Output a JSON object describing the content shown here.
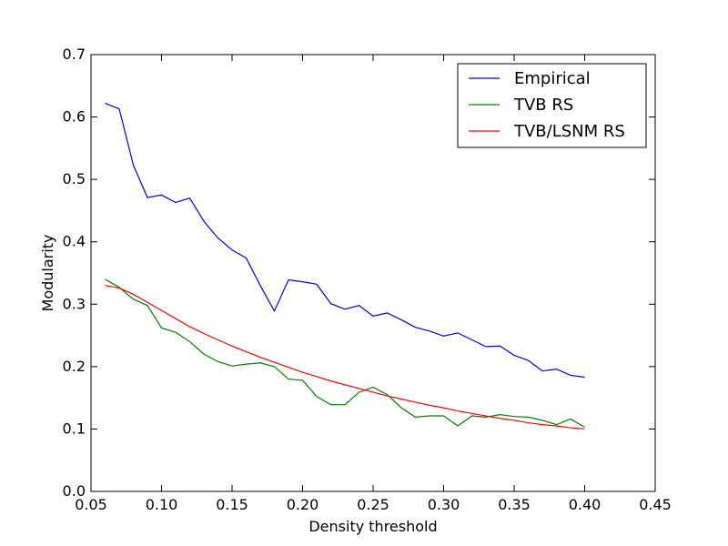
{
  "chart_data": {
    "type": "line",
    "title": "",
    "xlabel": "Density threshold",
    "ylabel": "Modularity",
    "xlim": [
      0.05,
      0.45
    ],
    "ylim": [
      0.0,
      0.7
    ],
    "xticks": [
      "0.05",
      "0.10",
      "0.15",
      "0.20",
      "0.25",
      "0.30",
      "0.35",
      "0.40",
      "0.45"
    ],
    "yticks": [
      "0.0",
      "0.1",
      "0.2",
      "0.3",
      "0.4",
      "0.5",
      "0.6",
      "0.7"
    ],
    "grid": false,
    "legend_position": "top-right",
    "x": [
      0.06,
      0.07,
      0.08,
      0.09,
      0.1,
      0.11,
      0.12,
      0.13,
      0.14,
      0.15,
      0.16,
      0.17,
      0.18,
      0.19,
      0.2,
      0.21,
      0.22,
      0.23,
      0.24,
      0.25,
      0.26,
      0.27,
      0.28,
      0.29,
      0.3,
      0.31,
      0.32,
      0.33,
      0.34,
      0.35,
      0.36,
      0.37,
      0.38,
      0.39,
      0.4
    ],
    "series": [
      {
        "name": "Empirical",
        "color": "#0000ff",
        "values": [
          0.622,
          0.613,
          0.523,
          0.471,
          0.475,
          0.463,
          0.47,
          0.433,
          0.406,
          0.387,
          0.374,
          0.33,
          0.289,
          0.339,
          0.336,
          0.332,
          0.301,
          0.292,
          0.298,
          0.281,
          0.286,
          0.275,
          0.263,
          0.257,
          0.249,
          0.254,
          0.243,
          0.232,
          0.233,
          0.218,
          0.21,
          0.193,
          0.196,
          0.186,
          0.183
        ]
      },
      {
        "name": "TVB RS",
        "color": "#008000",
        "values": [
          0.34,
          0.327,
          0.308,
          0.298,
          0.262,
          0.255,
          0.24,
          0.22,
          0.208,
          0.201,
          0.204,
          0.206,
          0.2,
          0.18,
          0.178,
          0.152,
          0.139,
          0.139,
          0.159,
          0.167,
          0.155,
          0.134,
          0.119,
          0.121,
          0.121,
          0.105,
          0.121,
          0.119,
          0.123,
          0.12,
          0.119,
          0.114,
          0.107,
          0.116,
          0.103
        ]
      },
      {
        "name": "TVB/LSNM RS",
        "color": "#ff0000",
        "values": [
          0.33,
          0.326,
          0.316,
          0.303,
          0.29,
          0.277,
          0.264,
          0.253,
          0.243,
          0.233,
          0.224,
          0.215,
          0.207,
          0.199,
          0.191,
          0.184,
          0.177,
          0.171,
          0.165,
          0.159,
          0.153,
          0.148,
          0.143,
          0.138,
          0.134,
          0.129,
          0.125,
          0.121,
          0.117,
          0.114,
          0.11,
          0.107,
          0.105,
          0.102,
          0.1
        ]
      }
    ]
  }
}
